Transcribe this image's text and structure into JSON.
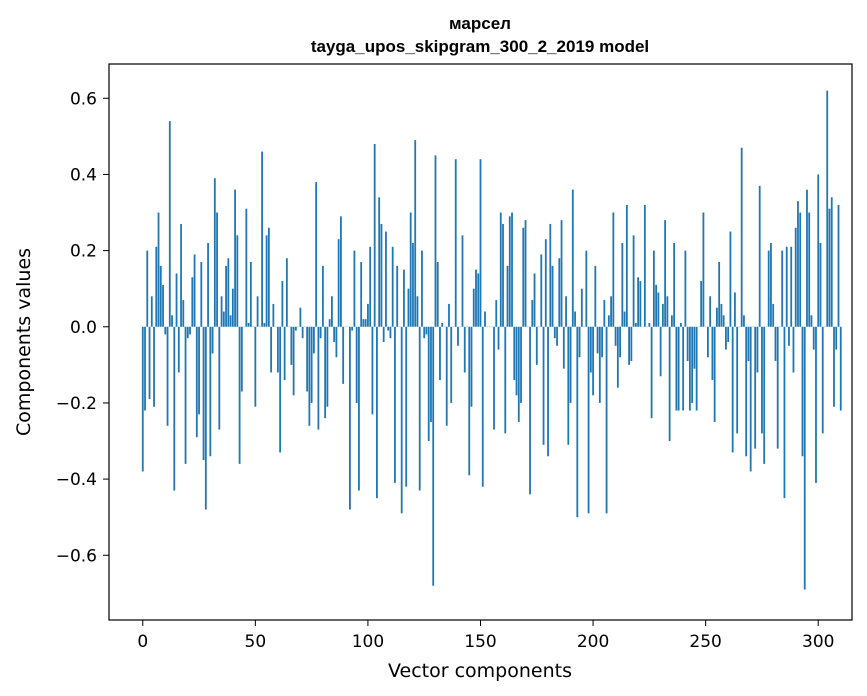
{
  "chart_data": {
    "type": "bar",
    "title": "марсел",
    "subtitle": "tayga_upos_skipgram_300_2_2019 model",
    "xlabel": "Vector components",
    "ylabel": "Components values",
    "xlim": [
      -15,
      315
    ],
    "ylim": [
      -0.77,
      0.69
    ],
    "xticks": [
      0,
      50,
      100,
      150,
      200,
      250,
      300
    ],
    "xtick_labels": [
      "0",
      "50",
      "100",
      "150",
      "200",
      "250",
      "300"
    ],
    "yticks": [
      -0.6,
      -0.4,
      -0.2,
      0.0,
      0.2,
      0.4,
      0.6
    ],
    "ytick_labels": [
      "−0.6",
      "−0.4",
      "−0.2",
      "0.0",
      "0.2",
      "0.4",
      "0.6"
    ],
    "bar_color": "#1f77b4",
    "values": [
      -0.38,
      -0.22,
      0.2,
      -0.19,
      0.08,
      -0.21,
      0.21,
      0.3,
      0.16,
      0.11,
      -0.02,
      -0.26,
      0.54,
      0.03,
      -0.43,
      0.14,
      -0.12,
      0.27,
      0.07,
      -0.36,
      -0.03,
      -0.02,
      0.13,
      0.19,
      -0.29,
      -0.23,
      0.17,
      -0.35,
      -0.48,
      0.22,
      -0.34,
      -0.07,
      0.39,
      0.3,
      -0.27,
      0.08,
      0.04,
      0.16,
      0.18,
      0.03,
      0.1,
      0.36,
      0.24,
      -0.36,
      -0.17,
      0.0,
      0.31,
      0.01,
      0.17,
      0.0,
      -0.21,
      0.08,
      0.0,
      0.46,
      0.01,
      0.24,
      0.26,
      -0.12,
      0.06,
      0.0,
      -0.12,
      -0.33,
      0.12,
      -0.14,
      0.18,
      0.0,
      -0.1,
      -0.18,
      -0.01,
      0.0,
      0.05,
      -0.03,
      0.0,
      -0.17,
      -0.26,
      -0.2,
      -0.07,
      0.38,
      -0.27,
      -0.03,
      0.16,
      -0.24,
      -0.21,
      0.02,
      0.08,
      -0.04,
      -0.08,
      0.23,
      0.29,
      -0.15,
      0.0,
      0.0,
      -0.48,
      -0.01,
      0.2,
      -0.2,
      -0.43,
      0.17,
      0.02,
      0.02,
      0.06,
      0.21,
      -0.23,
      0.48,
      -0.45,
      0.34,
      0.27,
      -0.04,
      0.25,
      -0.01,
      -0.03,
      0.21,
      -0.41,
      0.16,
      0.0,
      -0.49,
      0.15,
      -0.42,
      0.1,
      0.3,
      0.22,
      0.49,
      0.08,
      -0.43,
      0.2,
      -0.03,
      -0.02,
      -0.3,
      -0.25,
      -0.68,
      0.45,
      0.17,
      -0.14,
      0.01,
      0.0,
      -0.26,
      0.06,
      -0.2,
      0.0,
      0.44,
      -0.05,
      0.0,
      0.24,
      -0.12,
      0.0,
      -0.39,
      -0.21,
      0.1,
      0.15,
      0.14,
      0.44,
      -0.42,
      0.04,
      0.0,
      0.0,
      0.0,
      -0.27,
      0.07,
      -0.06,
      0.3,
      0.27,
      -0.28,
      0.16,
      0.29,
      0.3,
      -0.14,
      -0.18,
      -0.25,
      -0.2,
      0.26,
      0.28,
      0.0,
      -0.44,
      0.07,
      0.14,
      -0.1,
      0.0,
      0.19,
      -0.31,
      0.23,
      -0.34,
      0.27,
      0.16,
      -0.03,
      -0.05,
      0.18,
      0.28,
      -0.11,
      0.08,
      -0.31,
      -0.2,
      0.36,
      0.04,
      -0.5,
      -0.08,
      0.1,
      0.0,
      0.2,
      -0.49,
      -0.12,
      -0.18,
      0.16,
      -0.07,
      -0.2,
      -0.08,
      0.07,
      -0.49,
      0.03,
      0.08,
      0.3,
      -0.05,
      -0.16,
      -0.08,
      0.22,
      0.04,
      0.32,
      -0.1,
      -0.09,
      0.24,
      0.01,
      0.13,
      0.12,
      0.0,
      0.32,
      0.0,
      0.01,
      -0.24,
      0.2,
      0.11,
      0.09,
      -0.13,
      0.06,
      0.28,
      0.08,
      -0.3,
      0.03,
      0.22,
      -0.22,
      -0.22,
      0.01,
      -0.22,
      0.2,
      -0.09,
      -0.22,
      -0.2,
      -0.11,
      -0.22,
      0.0,
      0.12,
      0.3,
      0.0,
      -0.08,
      0.08,
      -0.14,
      -0.25,
      0.05,
      0.17,
      0.06,
      0.03,
      -0.06,
      -0.04,
      0.25,
      -0.33,
      0.09,
      -0.28,
      0.0,
      0.47,
      0.03,
      -0.34,
      -0.09,
      -0.38,
      0.0,
      -0.32,
      -0.12,
      0.37,
      -0.28,
      -0.36,
      0.0,
      0.2,
      0.22,
      0.06,
      -0.09,
      -0.32,
      0.0,
      0.2,
      -0.45,
      0.21,
      -0.05,
      0.21,
      -0.12,
      0.26,
      0.33,
      0.3,
      -0.34,
      -0.69,
      0.36,
      0.3,
      0.03,
      -0.06,
      -0.41,
      0.4,
      0.22,
      -0.28,
      0.0,
      0.62,
      0.31,
      0.34,
      -0.21,
      -0.06,
      0.32,
      -0.22
    ]
  }
}
